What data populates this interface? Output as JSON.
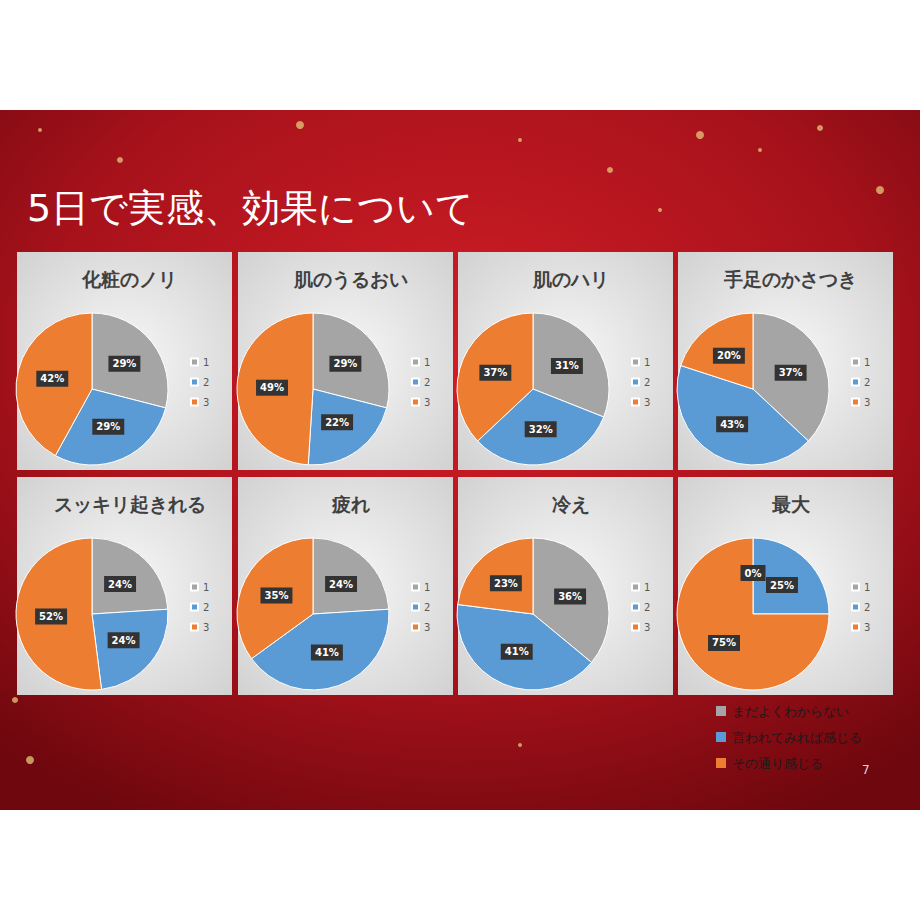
{
  "title": "5日で実感、効果について",
  "page_number": 7,
  "shared_legend": {
    "labels": [
      "まだよくわからない",
      "言われてみれば感じる",
      "その通り感じる"
    ],
    "colors": [
      "#a5a5a5",
      "#5b9bd5",
      "#ed7d31"
    ]
  },
  "chart_data": [
    {
      "type": "pie",
      "title": "化粧のノリ",
      "categories": [
        "1",
        "2",
        "3"
      ],
      "values": [
        29,
        29,
        42
      ],
      "value_labels": [
        "29%",
        "29%",
        "42%"
      ],
      "colors": [
        "#a5a5a5",
        "#5b9bd5",
        "#ed7d31"
      ],
      "data_labels": true,
      "legend": "right"
    },
    {
      "type": "pie",
      "title": "肌のうるおい",
      "categories": [
        "1",
        "2",
        "3"
      ],
      "values": [
        29,
        22,
        49
      ],
      "value_labels": [
        "29%",
        "22%",
        "49%"
      ],
      "colors": [
        "#a5a5a5",
        "#5b9bd5",
        "#ed7d31"
      ],
      "data_labels": true,
      "legend": "right"
    },
    {
      "type": "pie",
      "title": "肌のハリ",
      "categories": [
        "1",
        "2",
        "3"
      ],
      "values": [
        31,
        32,
        37
      ],
      "value_labels": [
        "31%",
        "32%",
        "37%"
      ],
      "colors": [
        "#a5a5a5",
        "#5b9bd5",
        "#ed7d31"
      ],
      "data_labels": true,
      "legend": "right"
    },
    {
      "type": "pie",
      "title": "手足のかさつき",
      "categories": [
        "1",
        "2",
        "3"
      ],
      "values": [
        37,
        43,
        20
      ],
      "value_labels": [
        "37%",
        "43%",
        "20%"
      ],
      "colors": [
        "#a5a5a5",
        "#5b9bd5",
        "#ed7d31"
      ],
      "data_labels": true,
      "legend": "right"
    },
    {
      "type": "pie",
      "title": "スッキリ起きれる",
      "categories": [
        "1",
        "2",
        "3"
      ],
      "values": [
        24,
        24,
        52
      ],
      "value_labels": [
        "24%",
        "24%",
        "52%"
      ],
      "colors": [
        "#a5a5a5",
        "#5b9bd5",
        "#ed7d31"
      ],
      "data_labels": true,
      "legend": "right"
    },
    {
      "type": "pie",
      "title": "疲れ",
      "categories": [
        "1",
        "2",
        "3"
      ],
      "values": [
        24,
        41,
        35
      ],
      "value_labels": [
        "24%",
        "41%",
        "35%"
      ],
      "colors": [
        "#a5a5a5",
        "#5b9bd5",
        "#ed7d31"
      ],
      "data_labels": true,
      "legend": "right"
    },
    {
      "type": "pie",
      "title": "冷え",
      "categories": [
        "1",
        "2",
        "3"
      ],
      "values": [
        36,
        41,
        23
      ],
      "value_labels": [
        "36%",
        "41%",
        "23%"
      ],
      "colors": [
        "#a5a5a5",
        "#5b9bd5",
        "#ed7d31"
      ],
      "data_labels": true,
      "legend": "right"
    },
    {
      "type": "pie",
      "title": "最大",
      "categories": [
        "1",
        "2",
        "3"
      ],
      "values": [
        0,
        25,
        75
      ],
      "value_labels": [
        "0%",
        "25%",
        "75%"
      ],
      "colors": [
        "#a5a5a5",
        "#5b9bd5",
        "#ed7d31"
      ],
      "data_labels": true,
      "legend": "right"
    }
  ]
}
